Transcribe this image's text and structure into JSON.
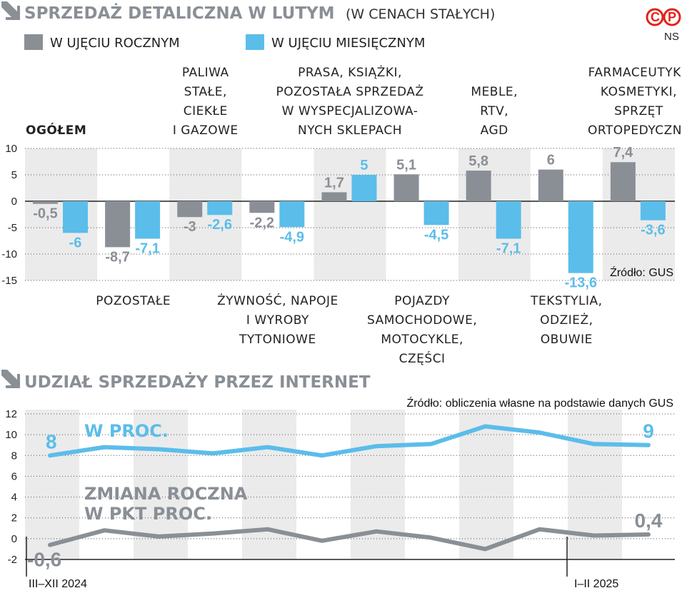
{
  "header": {
    "title": "SPRZEDAŻ DETALICZNA W LUTYM",
    "subtitle": "(W CENACH STAŁYCH)",
    "logo": "CP",
    "author": "NS"
  },
  "colors": {
    "gray": "#8a8f96",
    "blue": "#5bbdea",
    "band": "#ebebeb",
    "red": "#e2231a"
  },
  "chart_data": [
    {
      "type": "bar",
      "title": "SPRZEDAŻ DETALICZNA W LUTYM",
      "subtitle": "(W CENACH STAŁYCH)",
      "series": [
        {
          "name": "W UJĘCIU ROCZNYM",
          "values": [
            -0.5,
            -8.7,
            -3,
            -2.2,
            1.7,
            5.1,
            5.8,
            6,
            7.4
          ],
          "labels": [
            "-0,5",
            "-8,7",
            "-3",
            "-2,2",
            "1,7",
            "5,1",
            "5,8",
            "6",
            "7,4"
          ]
        },
        {
          "name": "W UJĘCIU MIESIĘCZNYM",
          "values": [
            -6,
            -7.1,
            -2.6,
            -4.9,
            5,
            -4.5,
            -7.1,
            -13.6,
            -3.6
          ],
          "labels": [
            "-6",
            "-7,1",
            "-2,6",
            "-4,9",
            "5",
            "-4,5",
            "-7,1",
            "-13,6",
            "-3,6"
          ]
        }
      ],
      "categories": [
        [
          "OGÓŁEM"
        ],
        [
          "POZOSTAŁE"
        ],
        [
          "PALIWA",
          "STAŁE,",
          "CIEKŁE",
          "I GAZOWE"
        ],
        [
          "ŻYWNOŚĆ, NAPOJE",
          "I WYROBY",
          "TYTONIOWE"
        ],
        [
          "PRASA, KSIĄŻKI,",
          "POZOSTAŁA SPRZEDAŻ",
          "W WYSPECJALIZOWA-",
          "NYCH SKLEPACH"
        ],
        [
          "POJAZDY",
          "SAMOCHODOWE,",
          "MOTOCYKLE,",
          "CZĘŚCI"
        ],
        [
          "MEBLE,",
          "RTV,",
          "AGD"
        ],
        [
          "TEKSTYLIA,",
          "ODZIEŻ,",
          "OBUWIE"
        ],
        [
          "FARMACEUTYKI,",
          "KOSMETYKI,",
          "SPRZĘT",
          "ORTOPEDYCZNY"
        ]
      ],
      "ylim": [
        -15,
        10
      ],
      "yticks": [
        "10",
        "5",
        "0",
        "-5",
        "-10",
        "-15"
      ],
      "source": "Źródło: GUS"
    },
    {
      "type": "line",
      "title": "UDZIAŁ SPRZEDAŻY PRZEZ INTERNET",
      "source": "Źródło: obliczenia własne na podstawie danych GUS",
      "x_labels": [
        "III–XII 2024",
        "I–II 2025"
      ],
      "series": [
        {
          "name": "W PROC.",
          "values": [
            8,
            8.8,
            8.6,
            8.2,
            8.8,
            8.0,
            8.9,
            9.1,
            10.8,
            10.2,
            9.1,
            9.0
          ],
          "start_label": "8",
          "end_label": "9"
        },
        {
          "name": "ZMIANA ROCZNA W PKT PROC.",
          "name_lines": [
            "ZMIANA ROCZNA",
            "W PKT PROC."
          ],
          "values": [
            -0.6,
            0.8,
            0.2,
            0.5,
            0.9,
            -0.2,
            0.7,
            0.1,
            -1.0,
            0.9,
            0.3,
            0.4
          ],
          "start_label": "-0,6",
          "end_label": "0,4"
        }
      ],
      "ylim": [
        -2,
        12
      ],
      "yticks": [
        "12",
        "10",
        "8",
        "6",
        "4",
        "2",
        "0",
        "-2"
      ]
    }
  ]
}
